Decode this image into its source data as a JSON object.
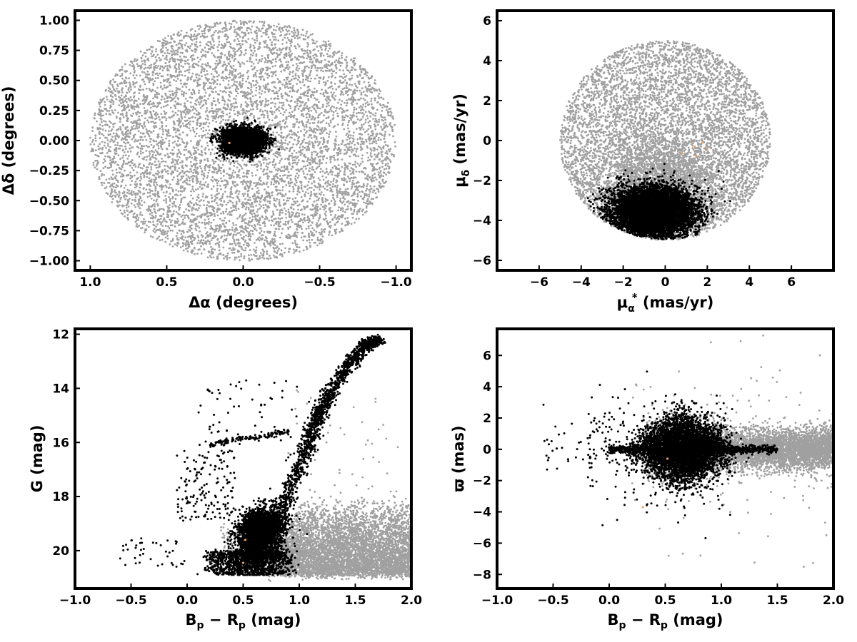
{
  "chart_data": [
    {
      "type": "scatter",
      "panel": "sky-positions",
      "xlabel": "Δα (degrees)",
      "ylabel": "Δδ (degrees)",
      "xlim": [
        1.1,
        -1.1
      ],
      "ylim": [
        -1.08,
        1.08
      ],
      "x_reversed": true,
      "xticks": [
        1.0,
        0.5,
        0.0,
        -0.5,
        -1.0
      ],
      "xtick_labels": [
        "1.0",
        "0.5",
        "0.0",
        "−0.5",
        "−1.0"
      ],
      "yticks": [
        1.0,
        0.75,
        0.5,
        0.25,
        0.0,
        -0.25,
        -0.5,
        -0.75,
        -1.0
      ],
      "ytick_labels": [
        "1.00",
        "0.75",
        "0.50",
        "0.25",
        "0.00",
        "−0.25",
        "−0.50",
        "−0.75",
        "−1.00"
      ],
      "grid": false,
      "series": [
        {
          "color": "#a0a0a0",
          "distribution": "uniform disk",
          "center": [
            0.0,
            0.0
          ],
          "radius": 1.0,
          "count": 7000
        },
        {
          "color": "#000000",
          "distribution": "gaussian cluster",
          "center": [
            0.0,
            0.0
          ],
          "sigma": [
            0.065,
            0.05
          ],
          "count": 4000
        },
        {
          "color": "#e8a060",
          "points": [
            [
              0.09,
              -0.02
            ]
          ]
        }
      ]
    },
    {
      "type": "scatter",
      "panel": "proper-motions",
      "xlabel_parts": [
        "μ",
        "α",
        "*",
        " (mas/yr)"
      ],
      "ylabel_parts": [
        "μ",
        "δ",
        " (mas/yr)"
      ],
      "xlim": [
        -8.0,
        8.0
      ],
      "ylim": [
        -6.5,
        6.5
      ],
      "xticks": [
        -6,
        -4,
        -2,
        0,
        2,
        4,
        6
      ],
      "xtick_labels": [
        "−6",
        "−4",
        "−2",
        "0",
        "2",
        "4",
        "6"
      ],
      "yticks": [
        -6,
        -4,
        -2,
        0,
        2,
        4,
        6
      ],
      "ytick_labels": [
        "−6",
        "−4",
        "−2",
        "0",
        "2",
        "4",
        "6"
      ],
      "grid": false,
      "series": [
        {
          "color": "#a0a0a0",
          "distribution": "uniform disk",
          "center": [
            0.0,
            0.0
          ],
          "radius": 5.0,
          "count": 6000
        },
        {
          "color": "#a0a0a0",
          "distribution": "gaussian cluster",
          "center": [
            -0.2,
            -2.3
          ],
          "sigma": [
            1.6,
            1.3
          ],
          "count": 2500
        },
        {
          "color": "#000000",
          "distribution": "gaussian cluster",
          "center": [
            -0.6,
            -3.6
          ],
          "sigma": [
            1.0,
            0.65
          ],
          "count": 6500,
          "clip_radius": 4.95
        },
        {
          "color": "#e8a060",
          "points": [
            [
              1.4,
              -0.3
            ],
            [
              1.8,
              -0.1
            ],
            [
              0.8,
              -0.6
            ],
            [
              1.5,
              -0.8
            ],
            [
              2.0,
              -0.4
            ]
          ]
        }
      ]
    },
    {
      "type": "scatter",
      "panel": "color-magnitude-diagram",
      "xlabel_parts": [
        "B",
        "p",
        " − R",
        "p",
        " (mag)"
      ],
      "ylabel": "G (mag)",
      "xlim": [
        -1.0,
        2.0
      ],
      "ylim": [
        21.4,
        11.8
      ],
      "y_reversed": true,
      "xticks": [
        -1.0,
        -0.5,
        0.0,
        0.5,
        1.0,
        1.5,
        2.0
      ],
      "xtick_labels": [
        "−1.0",
        "−0.5",
        "0.0",
        "0.5",
        "1.0",
        "1.5",
        "2.0"
      ],
      "yticks": [
        20,
        18,
        16,
        14,
        12
      ],
      "ytick_labels": [
        "20",
        "18",
        "16",
        "14",
        "12"
      ],
      "grid": false,
      "features": {
        "red_giant_branch": [
          [
            0.55,
            20.5
          ],
          [
            0.7,
            19.4
          ],
          [
            0.85,
            18.4
          ],
          [
            0.95,
            17.4
          ],
          [
            1.05,
            16.4
          ],
          [
            1.12,
            15.5
          ],
          [
            1.2,
            14.8
          ],
          [
            1.3,
            14.0
          ],
          [
            1.45,
            13.1
          ],
          [
            1.6,
            12.4
          ],
          [
            1.7,
            12.2
          ]
        ],
        "horizontal_branch": [
          [
            0.2,
            16.05
          ],
          [
            0.35,
            15.95
          ],
          [
            0.5,
            15.85
          ],
          [
            0.65,
            15.78
          ],
          [
            0.78,
            15.7
          ],
          [
            0.9,
            15.6
          ]
        ],
        "faint_field_range_G": [
          18.0,
          20.9
        ]
      },
      "series": [
        {
          "color": "#a0a0a0",
          "distribution": "field stars",
          "count": 5200
        },
        {
          "color": "#000000",
          "distribution": "cluster sequence",
          "count": 6000
        },
        {
          "color": "#e8a060",
          "points": [
            [
              0.5,
              20.45
            ],
            [
              0.52,
              19.6
            ]
          ]
        }
      ]
    },
    {
      "type": "scatter",
      "panel": "parallax-vs-color",
      "xlabel_parts": [
        "B",
        "p",
        " − R",
        "p",
        " (mag)"
      ],
      "ylabel": "ϖ (mas)",
      "xlim": [
        -1.0,
        2.0
      ],
      "ylim": [
        -8.9,
        7.7
      ],
      "xticks": [
        -1.0,
        -0.5,
        0.0,
        0.5,
        1.0,
        1.5,
        2.0
      ],
      "xtick_labels": [
        "−1.0",
        "−0.5",
        "0.0",
        "0.5",
        "1.0",
        "1.5",
        "2.0"
      ],
      "yticks": [
        6,
        4,
        2,
        0,
        -2,
        -4,
        -6,
        -8
      ],
      "ytick_labels": [
        "6",
        "4",
        "2",
        "0",
        "−2",
        "−4",
        "−6",
        "−8"
      ],
      "grid": false,
      "series": [
        {
          "color": "#a0a0a0",
          "distribution": "field stars",
          "count": 6000
        },
        {
          "color": "#000000",
          "distribution": "cluster",
          "center": [
            0.65,
            0.0
          ],
          "count": 6000
        },
        {
          "color": "#e8a060",
          "points": [
            [
              0.52,
              -0.6
            ],
            [
              0.3,
              -3.7
            ]
          ]
        }
      ]
    }
  ]
}
